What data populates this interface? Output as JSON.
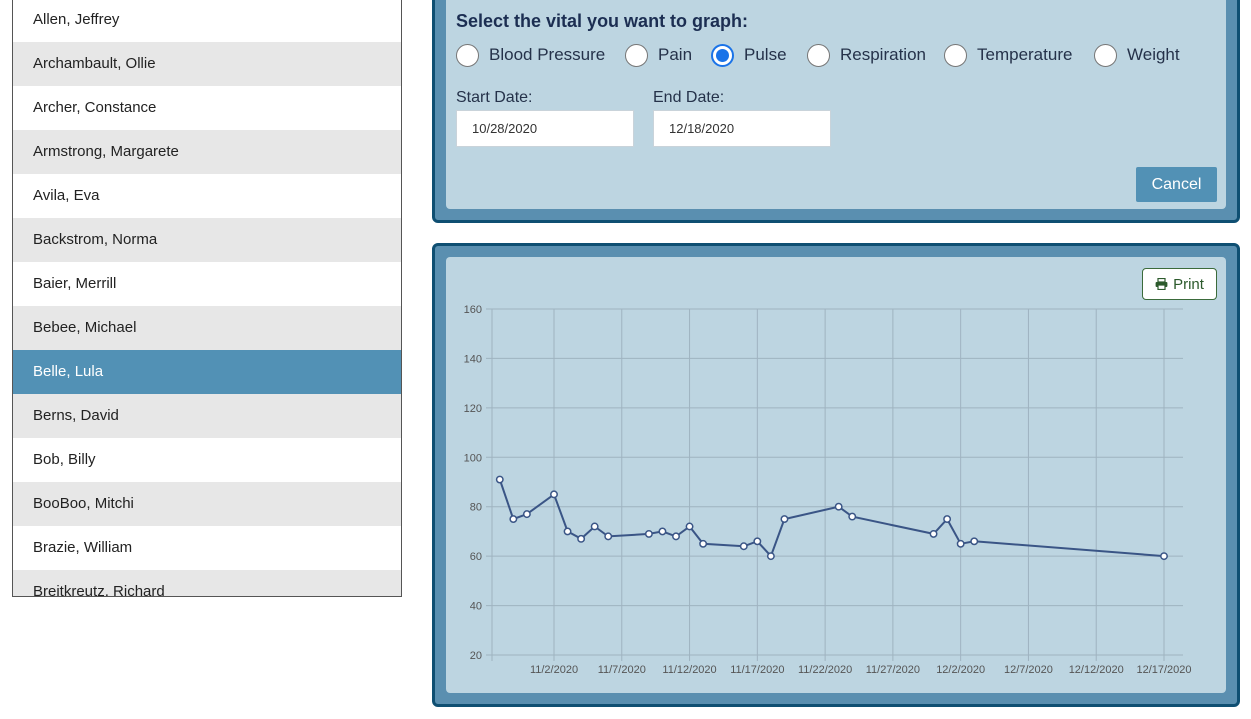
{
  "patients": [
    "Allen, Jeffrey",
    "Archambault, Ollie",
    "Archer, Constance",
    "Armstrong, Margarete",
    "Avila, Eva",
    "Backstrom, Norma",
    "Baier, Merrill",
    "Bebee, Michael",
    "Belle, Lula",
    "Berns, David",
    "Bob, Billy",
    "BooBoo, Mitchi",
    "Brazie, William",
    "Breitkreutz, Richard"
  ],
  "selected_patient": "Belle, Lula",
  "vital_form": {
    "prompt": "Select the vital you want to graph:",
    "options": [
      "Blood Pressure",
      "Pain",
      "Pulse",
      "Respiration",
      "Temperature",
      "Weight"
    ],
    "selected": "Pulse",
    "start_label": "Start Date:",
    "start_value": "10/28/2020",
    "end_label": "End Date:",
    "end_value": "12/18/2020",
    "cancel_label": "Cancel"
  },
  "print_label": "Print",
  "colors": {
    "accent": "#5291b5",
    "panel_border": "#0f4f72",
    "panel_bg": "#bdd5e1",
    "line": "#3a5586"
  },
  "chart_data": {
    "type": "line",
    "ylim": [
      20,
      160
    ],
    "y_ticks": [
      20,
      40,
      60,
      80,
      100,
      120,
      140,
      160
    ],
    "x_ticks": [
      "11/2/2020",
      "11/7/2020",
      "11/12/2020",
      "11/17/2020",
      "11/22/2020",
      "11/27/2020",
      "12/2/2020",
      "12/7/2020",
      "12/12/2020",
      "12/17/2020"
    ],
    "grid": true,
    "series": [
      {
        "x": [
          "10/29/2020",
          "10/30/2020",
          "10/31/2020",
          "11/2/2020",
          "11/3/2020",
          "11/4/2020",
          "11/5/2020",
          "11/6/2020",
          "11/9/2020",
          "11/10/2020",
          "11/11/2020",
          "11/12/2020",
          "11/13/2020",
          "11/16/2020",
          "11/17/2020",
          "11/18/2020",
          "11/19/2020",
          "11/23/2020",
          "11/24/2020",
          "11/30/2020",
          "12/1/2020",
          "12/2/2020",
          "12/3/2020",
          "12/17/2020"
        ],
        "y": [
          91,
          75,
          77,
          85,
          70,
          67,
          72,
          68,
          69,
          70,
          68,
          72,
          65,
          64,
          66,
          60,
          75,
          80,
          76,
          69,
          75,
          65,
          66,
          60
        ]
      }
    ]
  }
}
